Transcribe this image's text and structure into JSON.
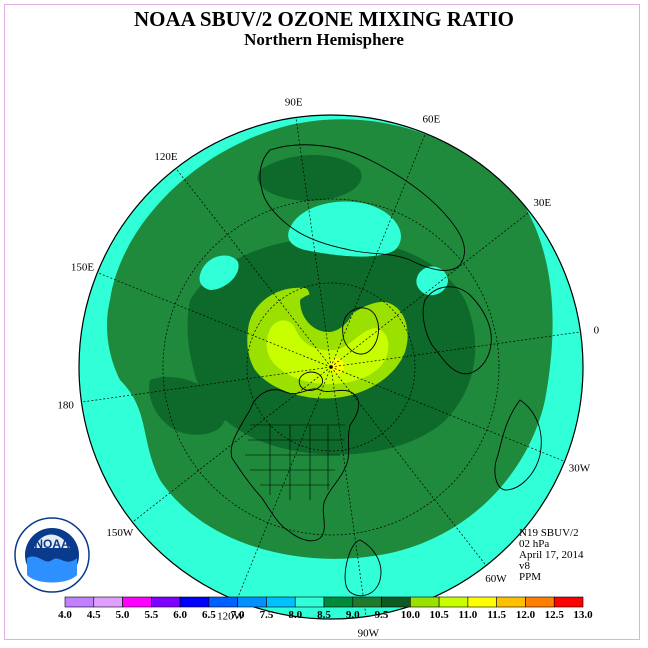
{
  "title": "NOAA SBUV/2 OZONE MIXING RATIO",
  "subtitle": "Northern Hemisphere",
  "info": {
    "satellite": "N19 SBUV/2",
    "level": "02 hPa",
    "date": "April 17, 2014",
    "version": "v8",
    "units": "PPM"
  },
  "longitude_labels": [
    {
      "label": "90E",
      "deg": 90
    },
    {
      "label": "60E",
      "deg": 60
    },
    {
      "label": "30E",
      "deg": 30
    },
    {
      "label": "0",
      "deg": 0
    },
    {
      "label": "30W",
      "deg": -30
    },
    {
      "label": "60W",
      "deg": -60
    },
    {
      "label": "90W",
      "deg": -90
    },
    {
      "label": "120W",
      "deg": -120
    },
    {
      "label": "150W",
      "deg": -150
    },
    {
      "label": "180",
      "deg": 180
    },
    {
      "label": "150E",
      "deg": 150
    },
    {
      "label": "120E",
      "deg": 120
    }
  ],
  "colorbar": {
    "labels": [
      "4.0",
      "4.5",
      "5.0",
      "5.5",
      "6.0",
      "6.5",
      "7.0",
      "7.5",
      "8.0",
      "8.5",
      "9.0",
      "9.5",
      "10.0",
      "10.5",
      "11.0",
      "11.5",
      "12.0",
      "12.5",
      "13.0"
    ],
    "colors": [
      "#c080ff",
      "#e0a0ff",
      "#ff00ff",
      "#8000ff",
      "#0000ff",
      "#0060ff",
      "#0090ff",
      "#00c0ff",
      "#30ffd8",
      "#008a3c",
      "#1f7a30",
      "#0e5a22",
      "#9ae000",
      "#c8ff00",
      "#ffff00",
      "#ffc000",
      "#ff8000",
      "#ff0000",
      "#804020"
    ]
  },
  "field_levels": {
    "outer": "7.5-8.0",
    "band": "8.0-8.5",
    "inner": "8.5-9.0",
    "core": "9.5-10.0",
    "peak": "10.0-10.5"
  },
  "colors": {
    "outer": "#30ffd8",
    "band": "#1f8a3c",
    "inner": "#0e6a2a",
    "core": "#9ae000",
    "peak": "#c8ff00",
    "max": "#ffff00"
  },
  "logo": {
    "text": "NOAA"
  }
}
